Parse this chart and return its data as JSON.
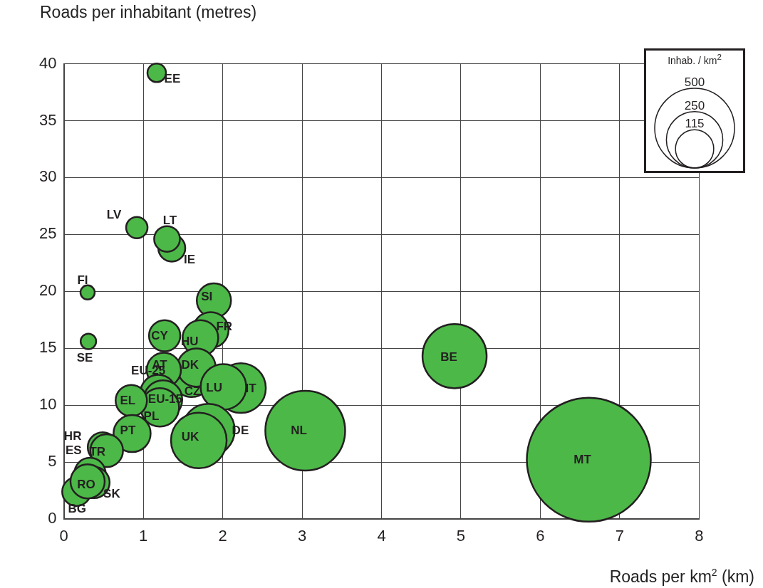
{
  "chart_data": {
    "type": "bubble",
    "xlabel": "Roads per km$^{2}$ (km)",
    "ylabel": "Roads per inhabitant (metres)",
    "legend_title": "Inhab. / km$^{2}$",
    "size_legend": [
      500,
      250,
      115
    ],
    "xlim": [
      0,
      8
    ],
    "xticks": [
      0,
      1,
      2,
      3,
      4,
      5,
      6,
      7,
      8
    ],
    "ylim": [
      0,
      40
    ],
    "yticks": [
      0,
      5,
      10,
      15,
      20,
      25,
      30,
      35,
      40
    ],
    "grid": true,
    "series": [
      {
        "color": "#4cb848",
        "x": [
          1.17,
          0.92,
          1.36,
          1.3,
          0.3,
          0.31,
          1.89,
          1.85,
          1.72,
          1.27,
          1.61,
          1.67,
          1.26,
          1.19,
          1.25,
          1.21,
          0.85,
          0.86,
          0.49,
          0.54,
          0.16,
          0.33,
          0.38,
          0.3,
          2.23,
          2.01,
          1.82,
          1.7,
          3.04,
          4.92,
          6.61
        ],
        "values": [
          39.2,
          25.6,
          23.8,
          24.6,
          19.9,
          15.6,
          19.2,
          16.6,
          15.9,
          16.1,
          12.4,
          13.3,
          13.1,
          11.1,
          10.5,
          9.8,
          10.4,
          7.5,
          6.3,
          6.0,
          2.4,
          4.0,
          3.2,
          3.3,
          11.5,
          11.6,
          7.8,
          6.9,
          7.75,
          14.3,
          5.2
        ],
        "sizes": [
          27,
          36,
          57,
          52,
          16,
          19,
          92,
          100,
          100,
          77,
          116,
          116,
          92,
          100,
          116,
          116,
          77,
          108,
          70,
          84,
          64,
          77,
          77,
          92,
          195,
          163,
          218,
          243,
          500,
          323,
          1207
        ]
      }
    ],
    "annotations": [
      {
        "text": "EE",
        "x": 1.17,
        "y": 39.2
      },
      {
        "text": "LV",
        "x": 0.92,
        "y": 25.6
      },
      {
        "text": "IE",
        "x": 1.36,
        "y": 23.8
      },
      {
        "text": "LT",
        "x": 1.3,
        "y": 24.6
      },
      {
        "text": "FI",
        "x": 0.3,
        "y": 19.9
      },
      {
        "text": "SE",
        "x": 0.31,
        "y": 15.6
      },
      {
        "text": "SI",
        "x": 1.89,
        "y": 19.2
      },
      {
        "text": "FR",
        "x": 1.85,
        "y": 16.6
      },
      {
        "text": "HU",
        "x": 1.72,
        "y": 15.9
      },
      {
        "text": "CY",
        "x": 1.27,
        "y": 16.1
      },
      {
        "text": "CZ",
        "x": 1.61,
        "y": 12.4
      },
      {
        "text": "DK",
        "x": 1.67,
        "y": 13.3
      },
      {
        "text": "AT",
        "x": 1.26,
        "y": 13.1
      },
      {
        "text": "EU-25",
        "x": 1.19,
        "y": 11.1
      },
      {
        "text": "EU-15",
        "x": 1.25,
        "y": 10.5
      },
      {
        "text": "PL",
        "x": 1.21,
        "y": 9.8
      },
      {
        "text": "EL",
        "x": 0.85,
        "y": 10.4
      },
      {
        "text": "PT",
        "x": 0.86,
        "y": 7.5
      },
      {
        "text": "HR",
        "x": 0.49,
        "y": 6.3
      },
      {
        "text": "TR",
        "x": 0.54,
        "y": 6.0
      },
      {
        "text": "BG",
        "x": 0.16,
        "y": 2.4
      },
      {
        "text": "ES",
        "x": 0.33,
        "y": 4.0
      },
      {
        "text": "SK",
        "x": 0.38,
        "y": 3.2
      },
      {
        "text": "RO",
        "x": 0.3,
        "y": 3.3
      },
      {
        "text": "IT",
        "x": 2.23,
        "y": 11.5
      },
      {
        "text": "LU",
        "x": 2.01,
        "y": 11.6
      },
      {
        "text": "DE",
        "x": 1.82,
        "y": 7.8
      },
      {
        "text": "UK",
        "x": 1.7,
        "y": 6.9
      },
      {
        "text": "NL",
        "x": 3.04,
        "y": 7.75
      },
      {
        "text": "BE",
        "x": 4.92,
        "y": 14.3
      },
      {
        "text": "MT",
        "x": 6.61,
        "y": 5.2
      }
    ]
  }
}
